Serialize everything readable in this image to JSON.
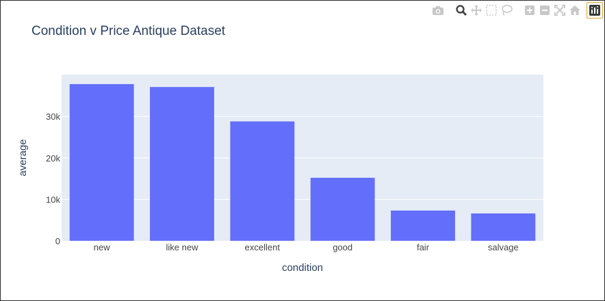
{
  "chart_data": {
    "type": "bar",
    "title": "Condition v Price Antique Dataset",
    "xlabel": "condition",
    "ylabel": "average",
    "categories": [
      "new",
      "like new",
      "excellent",
      "good",
      "fair",
      "salvage"
    ],
    "values": [
      37800,
      37100,
      28800,
      15200,
      7300,
      6600
    ],
    "ylim": [
      0,
      40100
    ],
    "yticks": [
      0,
      10000,
      20000,
      30000
    ],
    "ytick_labels": [
      "0",
      "10k",
      "20k",
      "30k"
    ],
    "grid": true,
    "colors": {
      "bar": "#636efa",
      "plot_bg": "#e5ecf6",
      "grid": "#ffffff",
      "text": "#2a3f5f",
      "tick_text": "#444444"
    }
  },
  "modebar": {
    "icons": [
      "camera-icon",
      "zoom-icon",
      "pan-icon",
      "box-select-icon",
      "lasso-icon",
      "zoom-in-icon",
      "zoom-out-icon",
      "autoscale-icon",
      "home-icon",
      "plotly-logo-icon"
    ]
  }
}
